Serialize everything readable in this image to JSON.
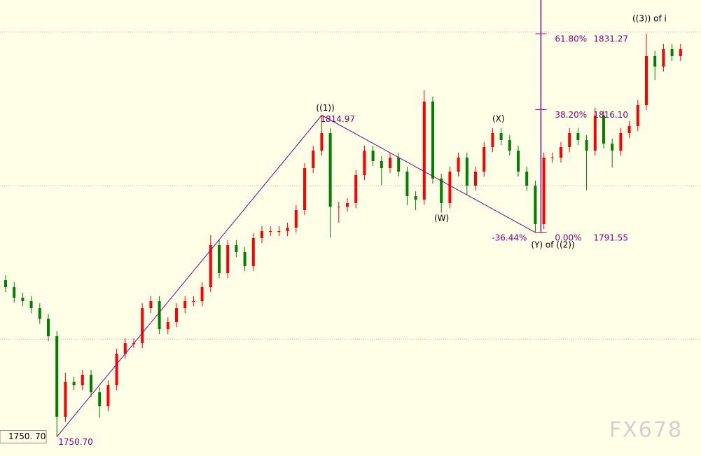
{
  "chart_data": {
    "type": "candlestick",
    "up_color": "#ff0000",
    "down_color": "#008000",
    "line_color": "#800080",
    "ylim": [
      1746.86,
      1838
    ],
    "grid_levels": [
      1831.6,
      1800.9,
      1770.2
    ],
    "price_tag": "1750. 70",
    "open": [
      1782.0,
      1780.6,
      1778.5,
      1777.8,
      1776.4,
      1774.3,
      1770.8,
      1754.7,
      1761.7,
      1761.0,
      1763.1,
      1759.6,
      1756.8,
      1761.0,
      1767.3,
      1769.4,
      1769.4,
      1776.4,
      1777.8,
      1772.2,
      1773.6,
      1776.4,
      1777.8,
      1777.8,
      1780.6,
      1789.0,
      1783.4,
      1789.0,
      1787.6,
      1784.8,
      1790.4,
      1791.8,
      1791.8,
      1791.8,
      1792.5,
      1796.0,
      1804.4,
      1807.9,
      1811.4,
      1796.7,
      1796.7,
      1797.4,
      1803.0,
      1807.9,
      1805.8,
      1804.4,
      1806.5,
      1803.7,
      1798.8,
      1798.1,
      1817.7,
      1802.3,
      1797.4,
      1803.7,
      1806.5,
      1800.9,
      1803.7,
      1808.6,
      1811.4,
      1810.0,
      1807.9,
      1803.7,
      1800.9,
      1793.2,
      1806.5,
      1806.5,
      1808.6,
      1811.4,
      1810.0,
      1807.9,
      1814.9,
      1809.3,
      1807.9,
      1811.4,
      1812.8,
      1817.0,
      1826.8,
      1824.7,
      1828.2,
      1826.8
    ],
    "high": [
      1783.0,
      1781.6,
      1779.5,
      1778.8,
      1777.4,
      1775.3,
      1771.8,
      1763.5,
      1762.7,
      1764.1,
      1764.1,
      1760.6,
      1762.0,
      1768.3,
      1770.4,
      1770.4,
      1777.4,
      1778.8,
      1778.8,
      1774.6,
      1777.4,
      1778.8,
      1778.8,
      1781.6,
      1791.0,
      1790.0,
      1790.0,
      1790.0,
      1788.6,
      1791.4,
      1792.8,
      1792.8,
      1792.8,
      1793.5,
      1797.0,
      1805.4,
      1808.9,
      1814.97,
      1812.4,
      1797.7,
      1798.4,
      1804.0,
      1808.9,
      1808.9,
      1806.8,
      1807.5,
      1807.5,
      1804.7,
      1799.8,
      1820.0,
      1818.7,
      1803.3,
      1804.7,
      1807.5,
      1807.5,
      1804.7,
      1809.6,
      1812.4,
      1812.4,
      1811.0,
      1808.9,
      1804.7,
      1801.9,
      1807.5,
      1807.5,
      1809.6,
      1812.4,
      1812.4,
      1811.0,
      1816.5,
      1815.9,
      1810.3,
      1812.4,
      1813.8,
      1818.0,
      1831.27,
      1827.8,
      1829.2,
      1829.2,
      1829.2
    ],
    "low": [
      1779.6,
      1777.5,
      1776.8,
      1775.4,
      1773.3,
      1769.8,
      1750.7,
      1753.7,
      1760.0,
      1760.0,
      1758.6,
      1754.5,
      1755.8,
      1760.0,
      1766.3,
      1768.4,
      1768.4,
      1775.4,
      1771.2,
      1771.2,
      1772.6,
      1775.4,
      1776.8,
      1776.8,
      1779.6,
      1782.4,
      1782.4,
      1786.6,
      1783.8,
      1783.8,
      1789.4,
      1790.8,
      1790.8,
      1790.8,
      1791.5,
      1795.0,
      1803.4,
      1806.9,
      1790.5,
      1793.5,
      1795.7,
      1796.4,
      1802.0,
      1804.8,
      1801.0,
      1803.4,
      1802.7,
      1797.0,
      1796.0,
      1797.1,
      1801.3,
      1795.5,
      1796.4,
      1802.7,
      1799.0,
      1799.9,
      1802.7,
      1807.6,
      1809.0,
      1806.9,
      1802.7,
      1799.9,
      1791.55,
      1792.2,
      1805.5,
      1805.5,
      1807.6,
      1809.0,
      1800.0,
      1806.9,
      1808.3,
      1804.5,
      1806.9,
      1810.4,
      1811.8,
      1816.0,
      1822.0,
      1823.7,
      1825.8,
      1825.8
    ],
    "close": [
      1780.6,
      1778.5,
      1777.8,
      1776.4,
      1774.3,
      1770.8,
      1754.7,
      1761.7,
      1761.0,
      1763.1,
      1759.6,
      1756.8,
      1761.0,
      1767.3,
      1769.4,
      1769.4,
      1776.4,
      1777.8,
      1772.2,
      1773.6,
      1776.4,
      1777.8,
      1777.8,
      1780.6,
      1789.0,
      1783.4,
      1789.0,
      1787.6,
      1784.8,
      1790.4,
      1791.8,
      1791.8,
      1791.8,
      1792.5,
      1796.0,
      1804.4,
      1807.9,
      1811.4,
      1796.7,
      1796.7,
      1797.4,
      1803.0,
      1807.9,
      1805.8,
      1804.4,
      1806.5,
      1803.7,
      1798.8,
      1798.1,
      1817.7,
      1802.3,
      1797.4,
      1803.7,
      1806.5,
      1800.9,
      1803.7,
      1808.6,
      1811.4,
      1810.0,
      1807.9,
      1803.7,
      1800.9,
      1793.2,
      1806.5,
      1806.5,
      1808.6,
      1811.4,
      1810.0,
      1807.9,
      1814.9,
      1809.3,
      1807.9,
      1811.4,
      1812.8,
      1817.0,
      1826.8,
      1824.7,
      1828.2,
      1826.8,
      1828.2
    ],
    "pivots": [
      {
        "value": 1750.7,
        "value_label": "1750.70"
      },
      {
        "value": 1814.97,
        "label": "((1))"
      },
      {
        "value": 1791.55,
        "label": "(Y) of ((2))",
        "pct": "-36.44%"
      }
    ],
    "fib_levels": [
      {
        "pct": "61.80%",
        "value": 1831.27,
        "label": "1831.27"
      },
      {
        "pct": "38.20%",
        "value": 1816.1,
        "label": "1816.10"
      },
      {
        "pct": "0.00%",
        "value": 1791.55,
        "label": "1791.55"
      }
    ],
    "wave_labels": [
      "(W)",
      "(X)",
      "((3)) of i"
    ],
    "watermark": "FX678"
  }
}
